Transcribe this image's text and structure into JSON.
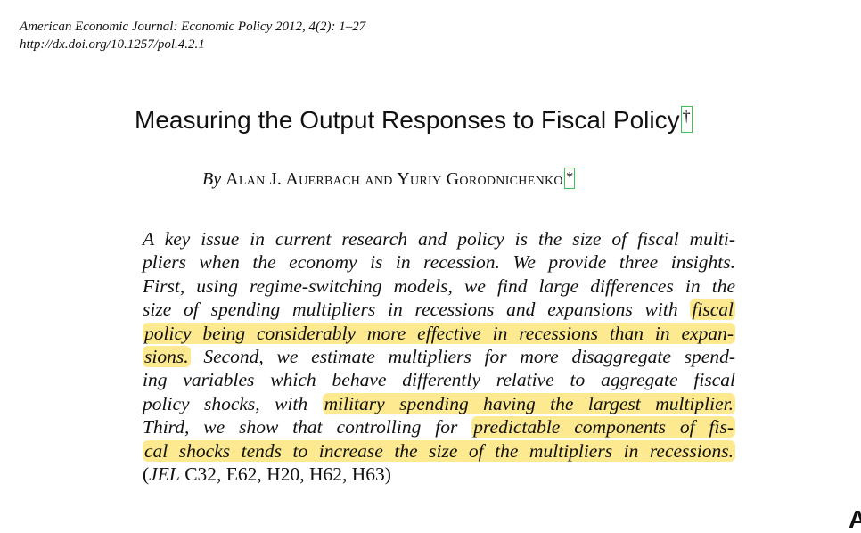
{
  "header": {
    "citation": "American Economic Journal: Economic Policy 2012, 4(2): 1–27",
    "doi": "http://dx.doi.org/10.1257/pol.4.2.1"
  },
  "paper": {
    "title": "Measuring the Output Responses to Fiscal Policy",
    "title_marker": "†",
    "by": "By",
    "authors": "Alan J. Auerbach and Yuriy Gorodnichenko",
    "authors_marker": "*"
  },
  "abstract": {
    "lines": [
      {
        "parts": [
          {
            "text": "A key issue in current research and policy is the size of fiscal multi-",
            "hl": false
          }
        ]
      },
      {
        "parts": [
          {
            "text": "pliers when the economy is in recession. We provide three insights.",
            "hl": false
          }
        ]
      },
      {
        "parts": [
          {
            "text": "First, using regime-switching models, we find large differences in the",
            "hl": false
          }
        ]
      },
      {
        "parts": [
          {
            "text": "size of spending multipliers in recessions and expansions with ",
            "hl": false
          },
          {
            "text": "fiscal",
            "hl": true
          }
        ]
      },
      {
        "parts": [
          {
            "text": "policy being considerably more effective in recessions than in expan-",
            "hl": true
          }
        ]
      },
      {
        "parts": [
          {
            "text": "sions.",
            "hl": true
          },
          {
            "text": " Second, we estimate multipliers for more disaggregate spend-",
            "hl": false
          }
        ]
      },
      {
        "parts": [
          {
            "text": "ing variables which behave differently relative to aggregate fiscal",
            "hl": false
          }
        ]
      },
      {
        "parts": [
          {
            "text": "policy shocks, with ",
            "hl": false
          },
          {
            "text": "military spending having the largest multiplier.",
            "hl": true
          }
        ]
      },
      {
        "parts": [
          {
            "text": "Third, we show that controlling for ",
            "hl": false
          },
          {
            "text": "predictable components of fis-",
            "hl": true
          }
        ]
      },
      {
        "parts": [
          {
            "text": "cal shocks tends to increase the size of the multipliers in recessions.",
            "hl": true
          }
        ]
      }
    ],
    "jel_prefix": "(",
    "jel_label": "JEL",
    "jel_codes": " C32, E62, H20, H62, H63)"
  },
  "corner_glyph": "A",
  "colors": {
    "highlight": "#fde98f",
    "marker_border": "#3fbf55"
  }
}
